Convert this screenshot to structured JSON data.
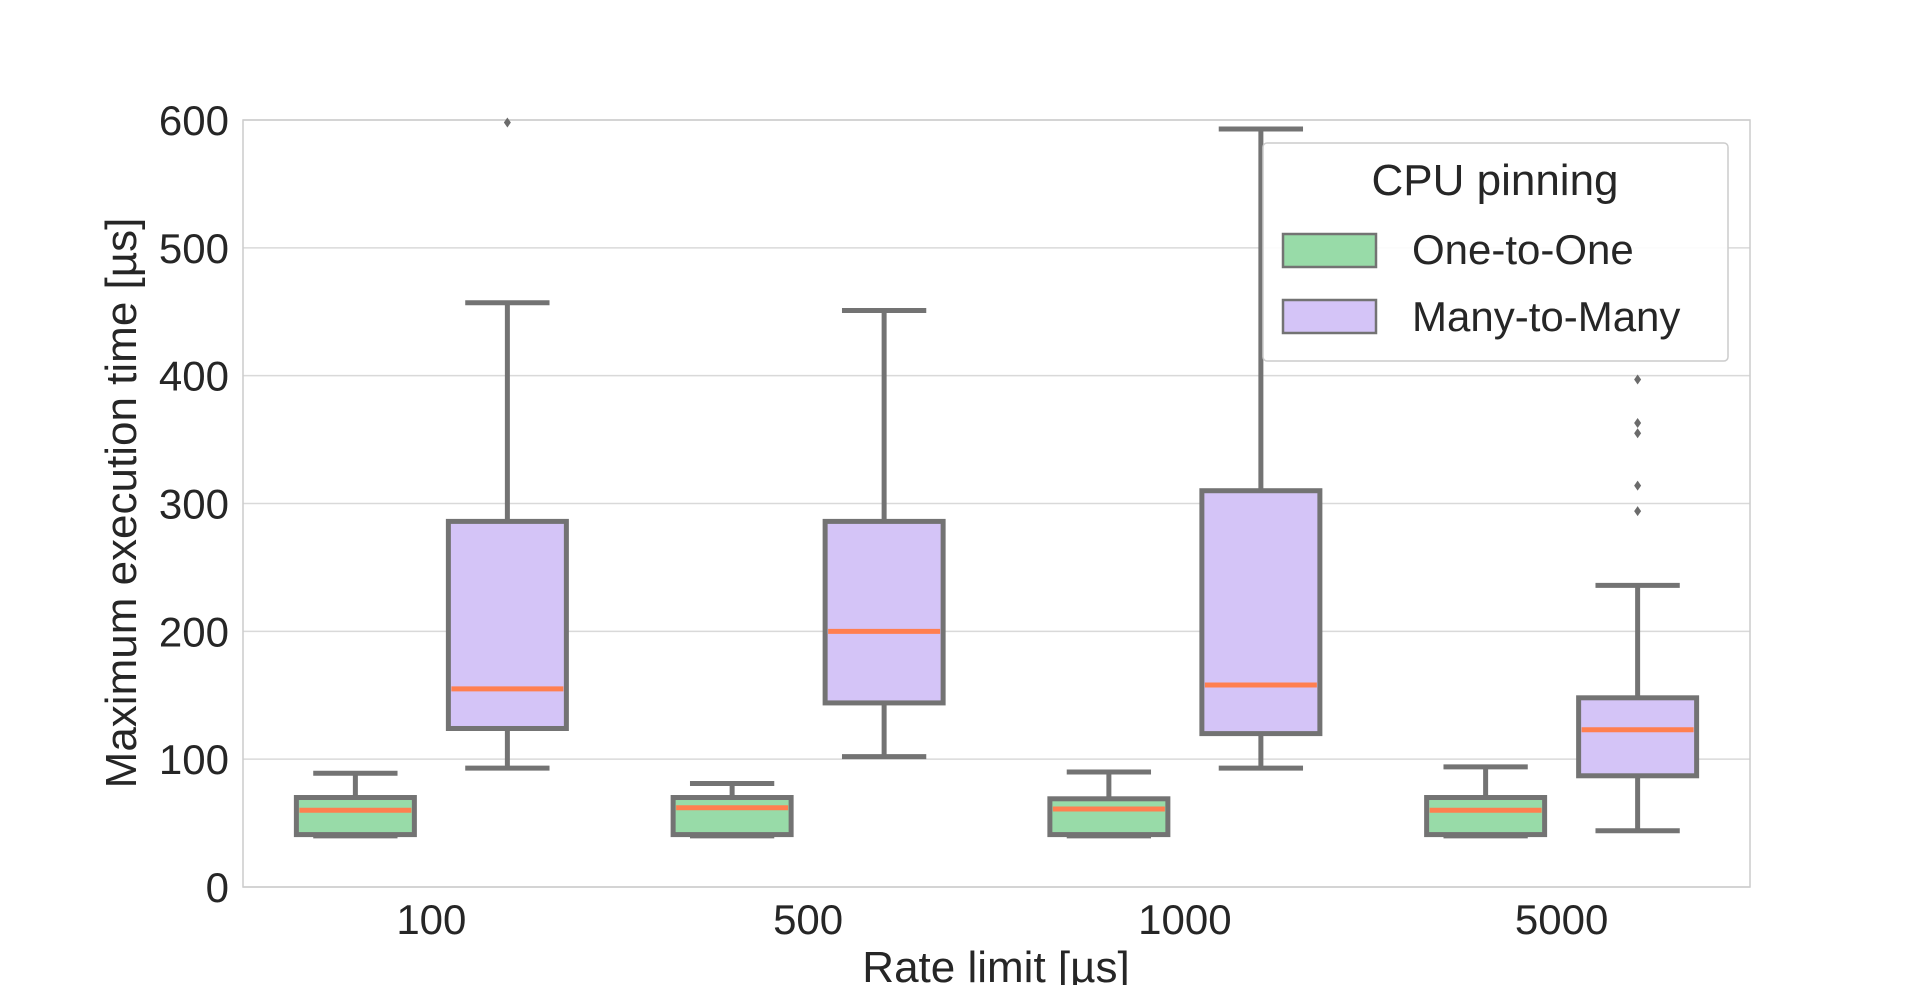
{
  "chart_data": {
    "type": "box",
    "xlabel": "Rate limit [µs]",
    "ylabel": "Maximum execution time [µs]",
    "ylim": [
      0,
      600
    ],
    "yticks": [
      0,
      100,
      200,
      300,
      400,
      500,
      600
    ],
    "categories": [
      "100",
      "500",
      "1000",
      "5000"
    ],
    "grid": true,
    "legend": {
      "title": "CPU pinning",
      "position": "top-right"
    },
    "median_color": "#ff7f50",
    "series": [
      {
        "name": "One-to-One",
        "color": "#98dba8",
        "boxes": [
          {
            "whislo": 40,
            "q1": 41,
            "med": 60,
            "q3": 70,
            "whishi": 89,
            "fliers": []
          },
          {
            "whislo": 40,
            "q1": 41,
            "med": 62,
            "q3": 70,
            "whishi": 81,
            "fliers": []
          },
          {
            "whislo": 40,
            "q1": 41,
            "med": 61,
            "q3": 69,
            "whishi": 90,
            "fliers": []
          },
          {
            "whislo": 40,
            "q1": 41,
            "med": 60,
            "q3": 70,
            "whishi": 94,
            "fliers": []
          }
        ]
      },
      {
        "name": "Many-to-Many",
        "color": "#d4c4f7",
        "boxes": [
          {
            "whislo": 93,
            "q1": 124,
            "med": 155,
            "q3": 286,
            "whishi": 457,
            "fliers": [
              598
            ]
          },
          {
            "whislo": 102,
            "q1": 144,
            "med": 200,
            "q3": 286,
            "whishi": 451,
            "fliers": []
          },
          {
            "whislo": 93,
            "q1": 120,
            "med": 158,
            "q3": 310,
            "whishi": 593,
            "fliers": []
          },
          {
            "whislo": 44,
            "q1": 87,
            "med": 123,
            "q3": 148,
            "whishi": 236,
            "fliers": [
              294,
              314,
              355,
              363,
              397
            ]
          }
        ]
      }
    ]
  }
}
